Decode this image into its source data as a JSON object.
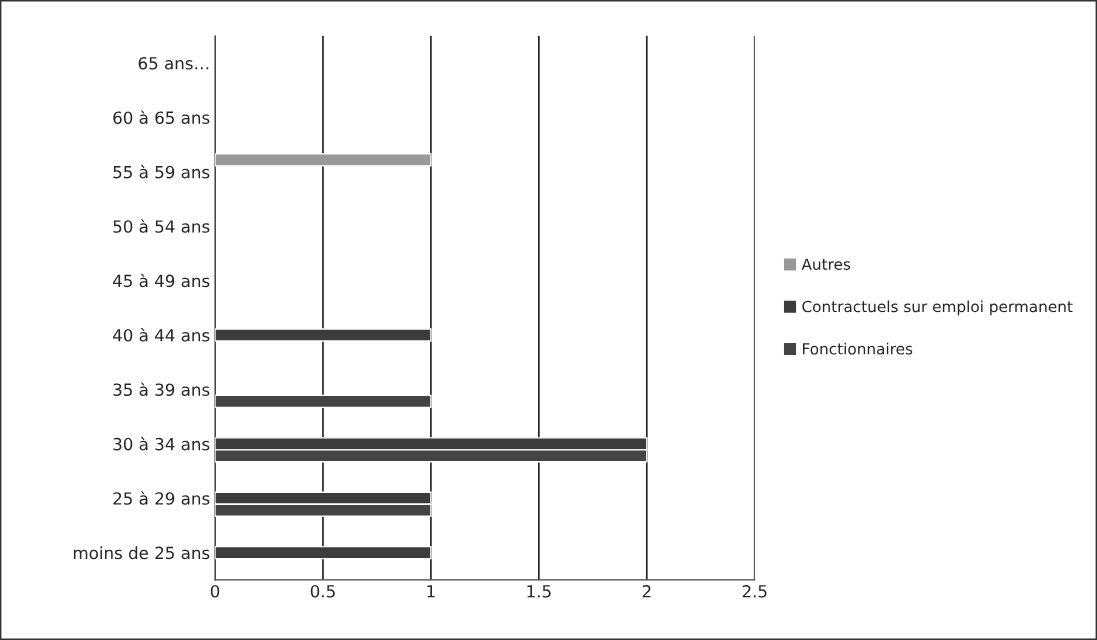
{
  "chart_data": {
    "type": "bar",
    "orientation": "horizontal",
    "categories": [
      "65 ans…",
      "60 à 65 ans",
      "55 à 59 ans",
      "50 à 54 ans",
      "45 à 49 ans",
      "40 à 44 ans",
      "35 à 39 ans",
      "30 à 34 ans",
      "25 à 29 ans",
      "moins de 25 ans"
    ],
    "series": [
      {
        "name": "Autres",
        "color": "#999999",
        "values": [
          null,
          null,
          1,
          null,
          null,
          null,
          null,
          null,
          null,
          null
        ]
      },
      {
        "name": "Contractuels sur emploi permanent",
        "color": "#3c3c3c",
        "values": [
          null,
          null,
          null,
          null,
          null,
          1,
          null,
          2,
          1,
          1
        ]
      },
      {
        "name": "Fonctionnaires",
        "color": "#444444",
        "values": [
          null,
          null,
          null,
          null,
          null,
          null,
          1,
          2,
          1,
          null
        ]
      }
    ],
    "xlim": [
      0,
      2.5
    ],
    "xticks": [
      0,
      0.5,
      1,
      1.5,
      2,
      2.5
    ],
    "grid": "x",
    "legend": "right"
  }
}
